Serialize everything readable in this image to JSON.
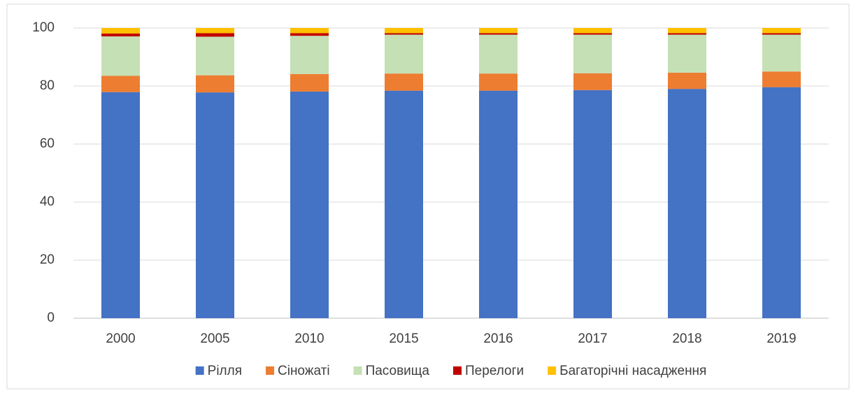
{
  "chart_data": {
    "type": "stacked_bar",
    "categories": [
      "2000",
      "2005",
      "2010",
      "2015",
      "2016",
      "2017",
      "2018",
      "2019"
    ],
    "series": [
      {
        "name": "Рілля",
        "color": "#4472c4",
        "values": [
          77.9,
          77.8,
          78.1,
          78.4,
          78.4,
          78.6,
          79.0,
          79.6
        ]
      },
      {
        "name": "Сіножаті",
        "color": "#ed7d31",
        "values": [
          5.6,
          5.9,
          6.0,
          5.9,
          5.9,
          5.8,
          5.6,
          5.4
        ]
      },
      {
        "name": "Пасовища",
        "color": "#c5e0b4",
        "values": [
          13.6,
          13.3,
          13.2,
          13.4,
          13.4,
          13.3,
          13.1,
          12.7
        ]
      },
      {
        "name": "Перелоги",
        "color": "#c00000",
        "values": [
          1.0,
          1.2,
          0.9,
          0.5,
          0.5,
          0.5,
          0.5,
          0.5
        ]
      },
      {
        "name": "Багаторічні насадження",
        "color": "#ffc000",
        "values": [
          1.9,
          1.8,
          1.8,
          1.8,
          1.8,
          1.8,
          1.8,
          1.8
        ]
      }
    ],
    "ylim": [
      0,
      100
    ],
    "yticks": [
      0,
      20,
      40,
      60,
      80,
      100
    ],
    "grid": true,
    "legend": "bottom"
  }
}
